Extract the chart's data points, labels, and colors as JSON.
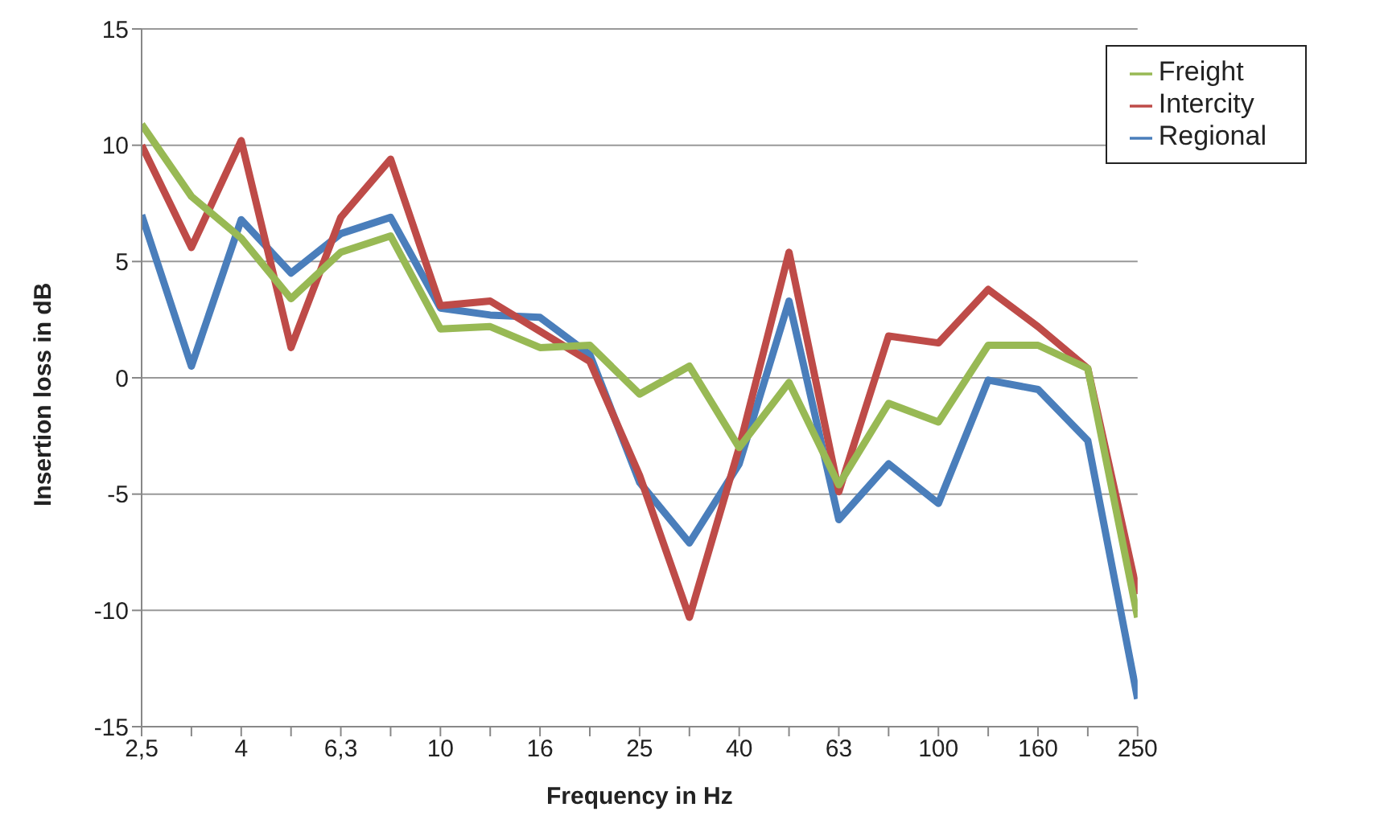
{
  "chart_data": {
    "type": "line",
    "xlabel": "Frequency in Hz",
    "ylabel": "Insertion loss in dB",
    "categories": [
      "2,5",
      null,
      "4",
      null,
      "6,3",
      null,
      "10",
      null,
      "16",
      null,
      "25",
      null,
      "40",
      null,
      "63",
      null,
      "100",
      null,
      "160",
      null,
      "250"
    ],
    "series": [
      {
        "name": "Regional",
        "color": "#4a7ebb",
        "values": [
          7.0,
          0.5,
          6.8,
          4.5,
          6.2,
          6.9,
          3.0,
          2.7,
          2.6,
          1.0,
          -4.5,
          -7.1,
          -3.7,
          3.3,
          -6.1,
          -3.7,
          -5.4,
          -0.1,
          -0.5,
          -2.7,
          -13.8
        ]
      },
      {
        "name": "Intercity",
        "color": "#be4b48",
        "values": [
          10.0,
          5.6,
          10.2,
          1.3,
          6.9,
          9.4,
          3.1,
          3.3,
          2.0,
          0.7,
          -4.2,
          -10.3,
          -3.0,
          5.4,
          -4.9,
          1.8,
          1.5,
          3.8,
          2.2,
          0.4,
          -9.3
        ]
      },
      {
        "name": "Freight",
        "color": "#98b954",
        "values": [
          10.9,
          7.8,
          6.0,
          3.4,
          5.4,
          6.1,
          2.1,
          2.2,
          1.3,
          1.4,
          -0.7,
          0.5,
          -3.0,
          -0.2,
          -4.6,
          -1.1,
          -1.9,
          1.4,
          1.4,
          0.4,
          -10.3
        ]
      }
    ],
    "ylim": [
      -15,
      15
    ],
    "yticks": [
      -15,
      -10,
      -5,
      0,
      5,
      10,
      15
    ],
    "grid": "y",
    "legend": "top right",
    "marker": "none",
    "line_style": "solid"
  }
}
